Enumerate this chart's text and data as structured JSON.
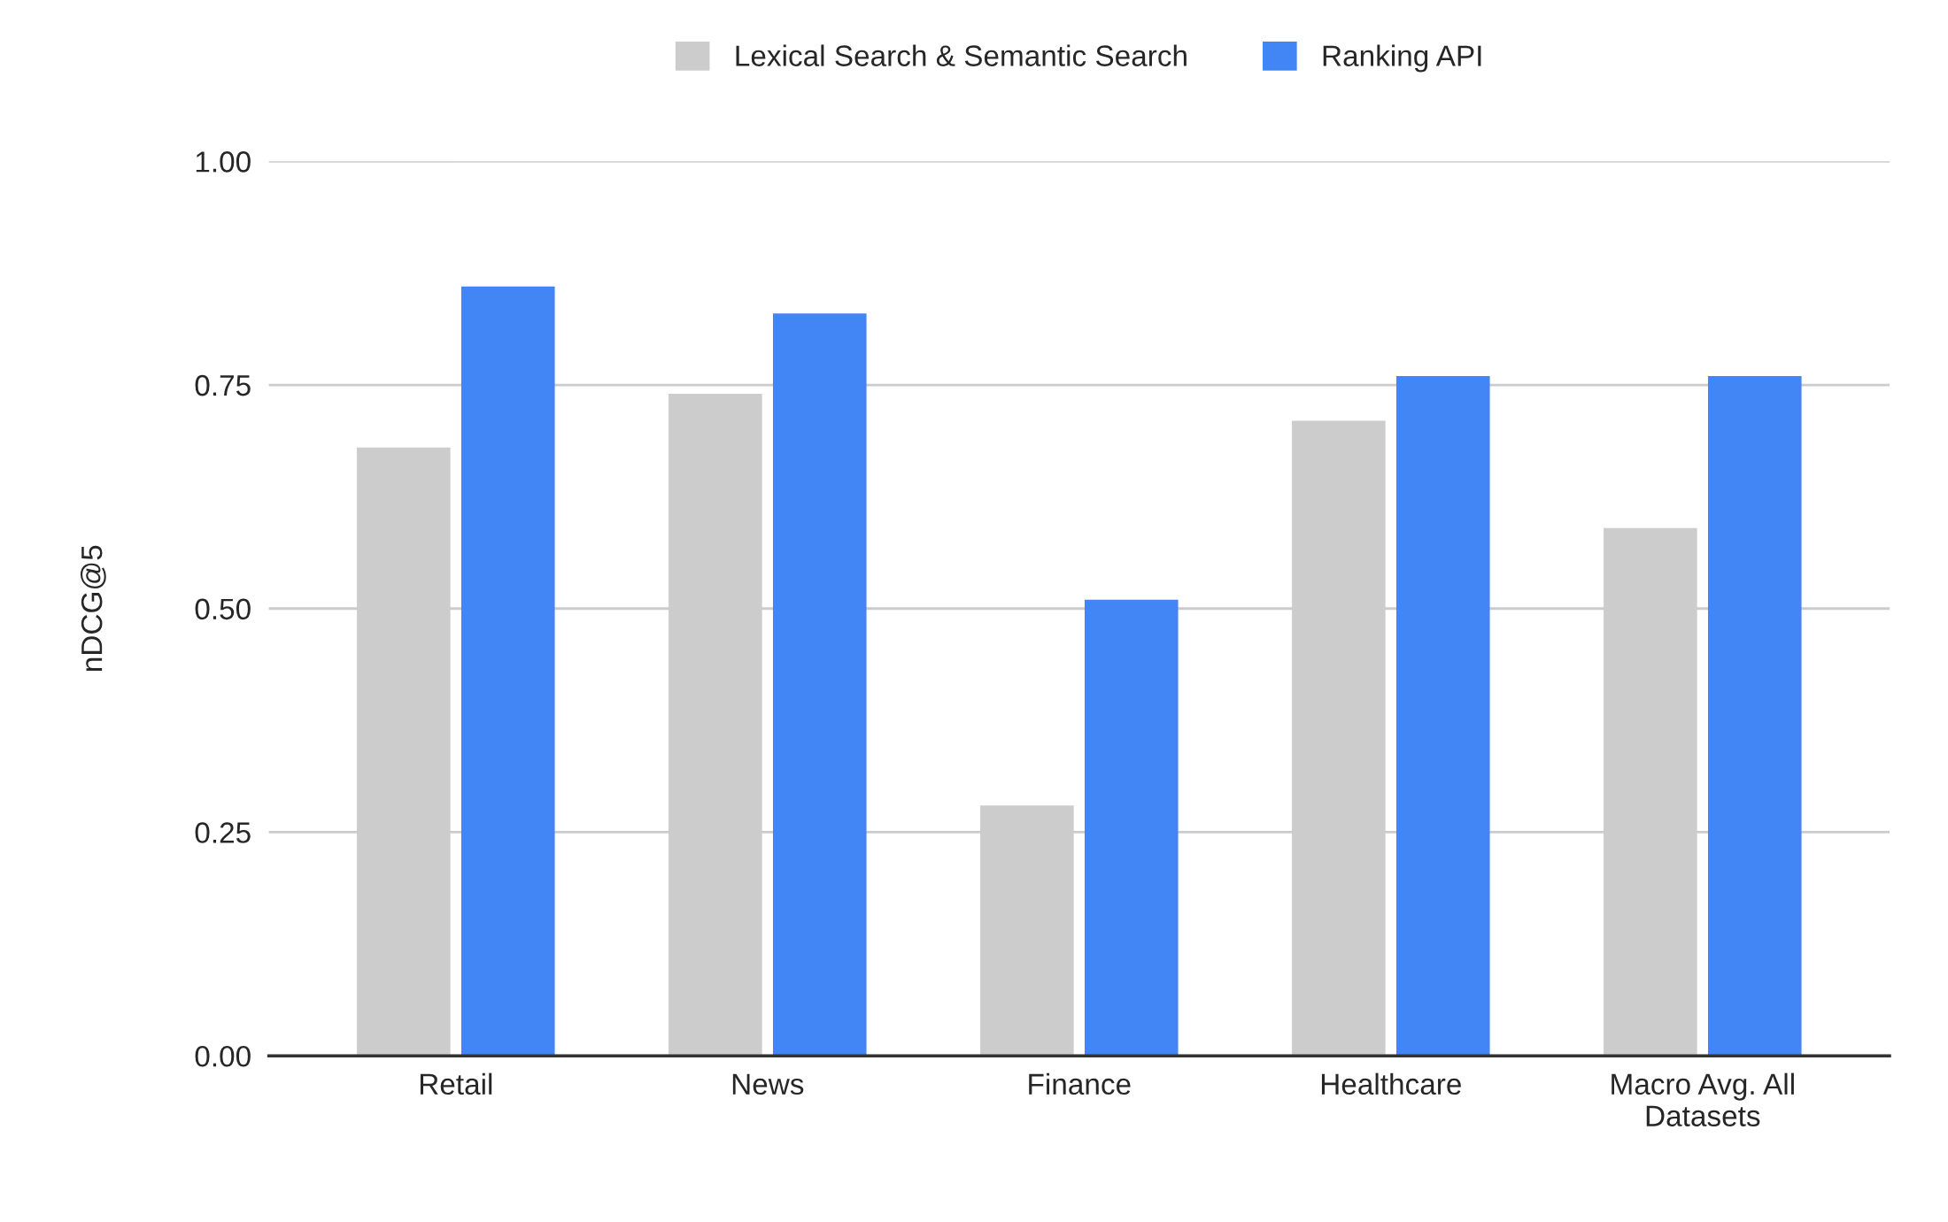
{
  "chart_data": {
    "type": "bar",
    "ylabel": "nDCG@5",
    "categories": [
      "Retail",
      "News",
      "Finance",
      "Healthcare",
      "Macro Avg. All\nDatasets"
    ],
    "series": [
      {
        "name": "Lexical Search & Semantic Search",
        "color": "#cccccc",
        "values": [
          0.68,
          0.74,
          0.28,
          0.71,
          0.59
        ]
      },
      {
        "name": "Ranking API",
        "color": "#4285f4",
        "values": [
          0.86,
          0.83,
          0.51,
          0.76,
          0.76
        ]
      }
    ],
    "ylim": [
      0,
      1
    ],
    "yticks": [
      {
        "value": 0,
        "label": "0.00"
      },
      {
        "value": 0.25,
        "label": "0.25"
      },
      {
        "value": 0.5,
        "label": "0.50"
      },
      {
        "value": 0.75,
        "label": "0.75"
      },
      {
        "value": 1,
        "label": "1.00"
      }
    ],
    "grid": "y",
    "legend": "top"
  }
}
